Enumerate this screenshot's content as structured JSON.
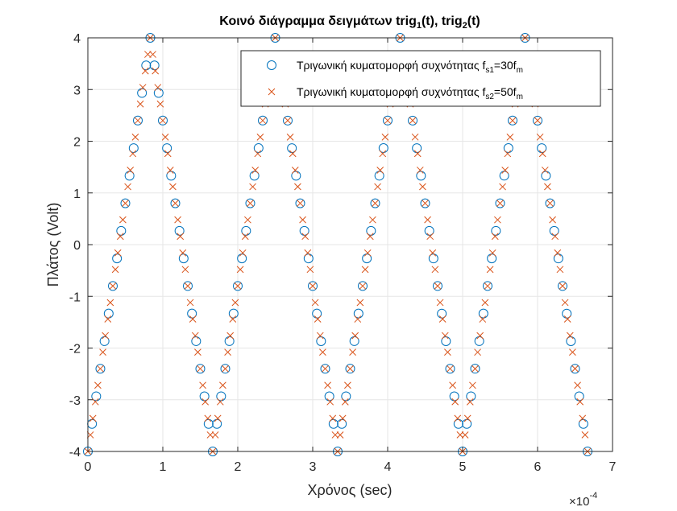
{
  "chart_data": {
    "type": "scatter",
    "title": "Κοινό διάγραμμα δειγμάτων trig₁(t), trig₂(t)",
    "title_parts": [
      {
        "text": "Κοινό διάγραμμα δειγμάτων trig",
        "sub": false
      },
      {
        "text": "1",
        "sub": true
      },
      {
        "text": "(t), trig",
        "sub": false
      },
      {
        "text": "2",
        "sub": true
      },
      {
        "text": "(t)",
        "sub": false
      }
    ],
    "xlabel": "Χρόνος (sec)",
    "ylabel": "Πλάτος (Volt)",
    "x_exponent": {
      "base": "×10",
      "power": "-4"
    },
    "xlim": [
      0,
      7
    ],
    "ylim": [
      -4,
      4
    ],
    "x_ticks": [
      0,
      1,
      2,
      3,
      4,
      5,
      6,
      7
    ],
    "x_tick_labels": [
      "0",
      "1",
      "2",
      "3",
      "4",
      "5",
      "6",
      "7"
    ],
    "y_ticks": [
      -4,
      -3,
      -2,
      -1,
      0,
      1,
      2,
      3,
      4
    ],
    "y_tick_labels": [
      "-4",
      "-3",
      "-2",
      "-1",
      "0",
      "1",
      "2",
      "3",
      "4"
    ],
    "x_scale_factor": 0.0001,
    "grid": true,
    "legend_position": "top-right",
    "signal": {
      "shape": "triangle",
      "amplitude_volts": 4,
      "period_sec": 0.0001666667,
      "starts_at": -4
    },
    "series": [
      {
        "name_parts": [
          {
            "text": "Τριγωνική κυματομορφή συχνότητας f",
            "sub": false
          },
          {
            "text": "s1",
            "sub": true
          },
          {
            "text": "=30f",
            "sub": false
          },
          {
            "text": "m",
            "sub": true
          }
        ],
        "marker": "circle",
        "color": "#0072BD",
        "sample_period_sec": 5.5556e-06,
        "num_samples": 121
      },
      {
        "name_parts": [
          {
            "text": "Τριγωνική κυματομορφή συχνότητας f",
            "sub": false
          },
          {
            "text": "s2",
            "sub": true
          },
          {
            "text": "=50f",
            "sub": false
          },
          {
            "text": "m",
            "sub": true
          }
        ],
        "marker": "x",
        "color": "#D95319",
        "sample_period_sec": 3.3333e-06,
        "num_samples": 201
      }
    ]
  }
}
